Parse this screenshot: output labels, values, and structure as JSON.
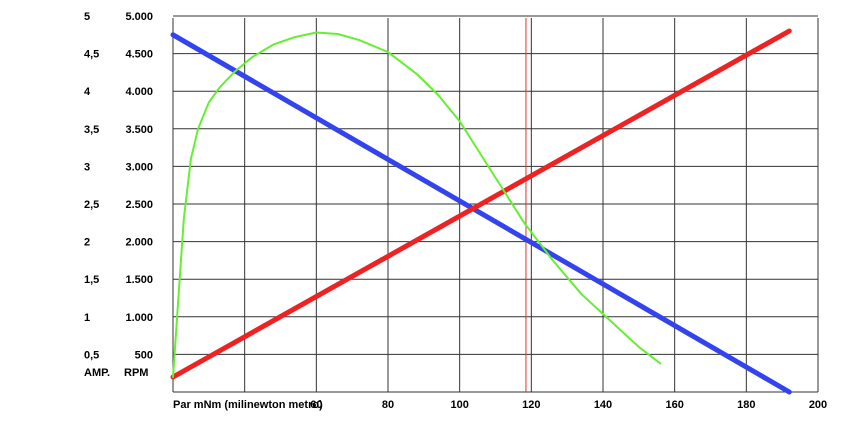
{
  "chart_data": {
    "type": "line",
    "xlabel": "Par   mNm (milinewton metro)",
    "x_ticks": [
      "60",
      "80",
      "100",
      "120",
      "140",
      "160",
      "180",
      "200"
    ],
    "x_tick_values": [
      60,
      80,
      100,
      120,
      140,
      160,
      180,
      200
    ],
    "xlim": [
      20,
      200
    ],
    "ylabel_left": "AMP.",
    "ylabel_right": "RPM",
    "y_amp_ticks": [
      "0,5",
      "1",
      "1,5",
      "2",
      "2,5",
      "3",
      "3,5",
      "4",
      "4,5",
      "5"
    ],
    "y_rpm_ticks": [
      "500",
      "1.000",
      "1.500",
      "2.000",
      "2.500",
      "3.000",
      "3.500",
      "4.000",
      "4.500",
      "5.000"
    ],
    "ylim_rpm": [
      0,
      5000
    ],
    "grid": true,
    "marker_x": 118.5,
    "series": [
      {
        "color": "#3344ee",
        "x": [
          20,
          192
        ],
        "y": [
          4750,
          0
        ]
      },
      {
        "color": "#ee2222",
        "x": [
          20,
          192
        ],
        "y": [
          200,
          4800
        ]
      },
      {
        "color": "#66ee33",
        "x": [
          20,
          21,
          22,
          23,
          25,
          27,
          30,
          33,
          37,
          42,
          48,
          54,
          60,
          66,
          72,
          80,
          88,
          94,
          100,
          106,
          112,
          118,
          126,
          134,
          142,
          150,
          156
        ],
        "y": [
          200,
          900,
          1600,
          2300,
          3100,
          3500,
          3850,
          4050,
          4250,
          4450,
          4620,
          4720,
          4780,
          4760,
          4680,
          4520,
          4230,
          3950,
          3600,
          3150,
          2700,
          2250,
          1750,
          1300,
          950,
          600,
          380
        ]
      }
    ]
  }
}
